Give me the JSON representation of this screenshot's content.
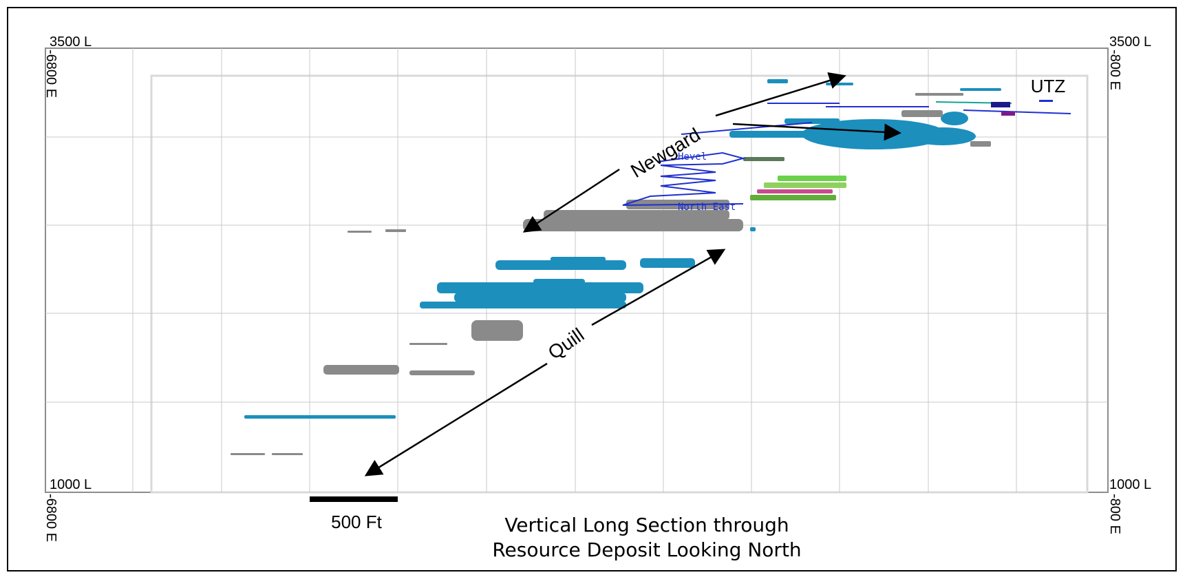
{
  "figure": {
    "level_top_left": "3500 L",
    "level_top_right": "3500 L",
    "level_bottom_left": "1000 L",
    "level_bottom_right": "1000 L",
    "easting_top_left": "-6800 E",
    "easting_top_right": "-800 E",
    "easting_bottom_left": "-6800 E",
    "easting_bottom_right": "-800 E",
    "scale_bar_label": "500 Ft",
    "caption_line1": "Vertical Long Section through",
    "caption_line2": "Resource Deposit Looking North",
    "zone_newgard": "Newgard",
    "zone_quill": "Quill",
    "zone_utz": "UTZ",
    "drift_label_1": "Hevel",
    "drift_label_2": "North East"
  },
  "colors": {
    "teal_blue": "#1c8fbd",
    "grey_block": "#8a8a8a",
    "dark_blue_lines": "#1f2fd0",
    "green_blocks": "#6bd14a",
    "grid": "#c8c8c8"
  }
}
